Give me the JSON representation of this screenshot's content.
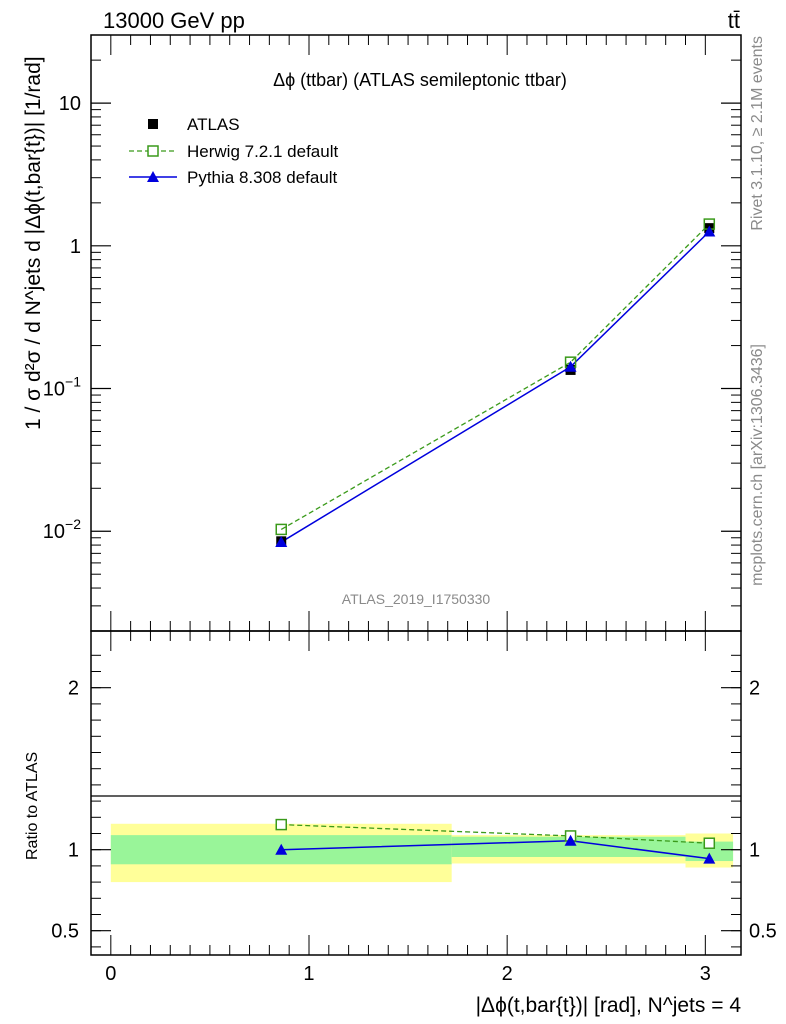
{
  "header": {
    "energy_label": "13000 GeV pp",
    "process_label": "tt̄"
  },
  "side_labels": {
    "rivet": "Rivet 3.1.10, ≥ 2.1M events",
    "mcplots": "mcplots.cern.ch [arXiv:1306.3436]"
  },
  "analysis_id": "ATLAS_2019_I1750330",
  "colors": {
    "data": "#000000",
    "herwig": "#3a9a1a",
    "pythia": "#0000dd",
    "band_inner": "#99f599",
    "band_outer": "#ffff99"
  },
  "chart_data": [
    {
      "type": "line",
      "title": "Δϕ (ttbar) (ATLAS semileptonic ttbar)",
      "ylabel": "1 / σ d²σ / d N^jets d |Δϕ(t,bar{t})| [1/rad]",
      "yscale": "log",
      "ylim": [
        0.002,
        30
      ],
      "xlim": [
        -0.1,
        3.18
      ],
      "x": [
        0.86,
        2.32,
        3.02
      ],
      "series": [
        {
          "name": "ATLAS",
          "marker": "filled-square",
          "values": [
            0.0085,
            0.135,
            1.33
          ]
        },
        {
          "name": "Herwig 7.2.1 default",
          "marker": "open-square",
          "linestyle": "dashed",
          "values": [
            0.0103,
            0.153,
            1.42
          ]
        },
        {
          "name": "Pythia 8.308 default",
          "marker": "filled-triangle",
          "linestyle": "solid",
          "values": [
            0.0084,
            0.142,
            1.26
          ]
        }
      ],
      "y_ticks": [
        {
          "value": 10,
          "label": "10"
        },
        {
          "value": 1,
          "label": "1"
        }
      ],
      "y_ticks_pow": [
        {
          "value": 0.1,
          "base": "10",
          "exp": "−1"
        },
        {
          "value": 0.01,
          "base": "10",
          "exp": "−2"
        }
      ],
      "legend": "top-left",
      "grid": false
    },
    {
      "type": "line",
      "ylabel": "Ratio to ATLAS",
      "xlabel": "|Δϕ(t,bar{t})| [rad], N^jets = 4",
      "ylim": [
        0.35,
        2.35
      ],
      "xlim": [
        -0.1,
        3.18
      ],
      "x": [
        0.86,
        2.32,
        3.02
      ],
      "bins": [
        {
          "lo": 0.0,
          "hi": 1.72,
          "inner": [
            0.91,
            1.09
          ],
          "outer": [
            0.8,
            1.16
          ]
        },
        {
          "lo": 1.72,
          "hi": 2.9,
          "inner": [
            0.955,
            1.08
          ],
          "outer": [
            0.915,
            1.09
          ]
        },
        {
          "lo": 2.9,
          "hi": 3.14,
          "inner": [
            0.93,
            1.05
          ],
          "outer": [
            0.89,
            1.1
          ]
        }
      ],
      "series": [
        {
          "name": "Herwig 7.2.1 default",
          "values": [
            1.155,
            1.085,
            1.04
          ]
        },
        {
          "name": "Pythia 8.308 default",
          "values": [
            1.0,
            1.055,
            0.945
          ]
        }
      ],
      "y_ticks": [
        {
          "value": 2,
          "label": "2"
        },
        {
          "value": 1,
          "label": "1"
        },
        {
          "value": 0.5,
          "label": "0.5"
        }
      ],
      "x_ticks": [
        {
          "value": 0,
          "label": "0"
        },
        {
          "value": 1,
          "label": "1"
        },
        {
          "value": 2,
          "label": "2"
        },
        {
          "value": 3,
          "label": "3"
        }
      ]
    }
  ]
}
